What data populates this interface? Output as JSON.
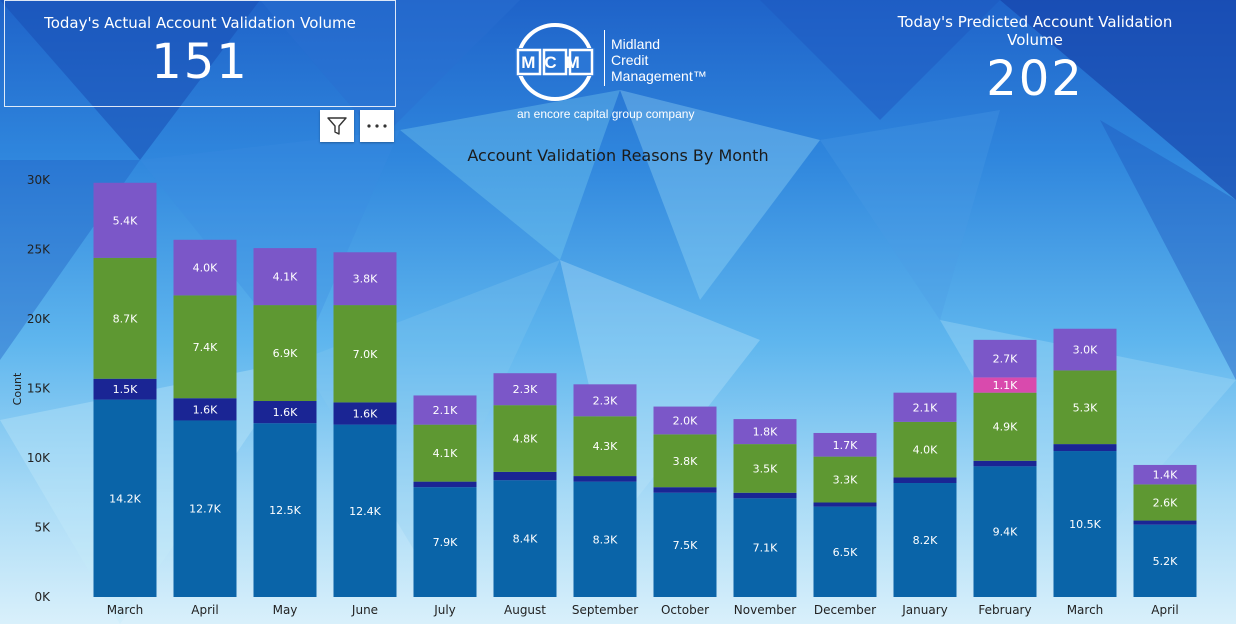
{
  "kpi_actual": {
    "title": "Today's Actual Account Validation Volume",
    "value": "151"
  },
  "kpi_predicted": {
    "title": "Today's Predicted Account Validation Volume",
    "value": "202"
  },
  "logo": {
    "badge": "MCM",
    "line1": "Midland",
    "line2": "Credit",
    "line3": "Management™",
    "tagline": "an encore capital group company"
  },
  "icons": {
    "filter": "filter-icon",
    "more": "more-options-icon"
  },
  "colors": {
    "s1": "#0a64a8",
    "s2": "#1a2594",
    "s3": "#5e9832",
    "s4": "#d94aad",
    "s5": "#7b57c8"
  },
  "chart_data": {
    "type": "bar",
    "stacked": true,
    "title": "Account Validation Reasons By Month",
    "xlabel": "",
    "ylabel": "Count",
    "ylim": [
      0,
      30000
    ],
    "yticks": [
      "0K",
      "5K",
      "10K",
      "15K",
      "20K",
      "25K",
      "30K"
    ],
    "categories": [
      "March",
      "April",
      "May",
      "June",
      "July",
      "August",
      "September",
      "October",
      "November",
      "December",
      "January",
      "February",
      "March",
      "April"
    ],
    "series": [
      {
        "values": [
          14200,
          12700,
          12500,
          12400,
          7900,
          8400,
          8300,
          7500,
          7100,
          6500,
          8200,
          9400,
          10500,
          5200
        ],
        "labels": [
          "14.2K",
          "12.7K",
          "12.5K",
          "12.4K",
          "7.9K",
          "8.4K",
          "8.3K",
          "7.5K",
          "7.1K",
          "6.5K",
          "8.2K",
          "9.4K",
          "10.5K",
          "5.2K"
        ]
      },
      {
        "values": [
          1500,
          1600,
          1600,
          1600,
          400,
          600,
          400,
          400,
          400,
          300,
          400,
          400,
          500,
          300
        ],
        "labels": [
          "1.5K",
          "1.6K",
          "1.6K",
          "1.6K",
          "",
          "",
          "",
          "",
          "",
          "",
          "",
          "",
          "",
          ""
        ]
      },
      {
        "values": [
          8700,
          7400,
          6900,
          7000,
          4100,
          4800,
          4300,
          3800,
          3500,
          3300,
          4000,
          4900,
          5300,
          2600
        ],
        "labels": [
          "8.7K",
          "7.4K",
          "6.9K",
          "7.0K",
          "4.1K",
          "4.8K",
          "4.3K",
          "3.8K",
          "3.5K",
          "3.3K",
          "4.0K",
          "4.9K",
          "5.3K",
          "2.6K"
        ]
      },
      {
        "values": [
          0,
          0,
          0,
          0,
          0,
          0,
          0,
          0,
          0,
          0,
          0,
          1100,
          0,
          0
        ],
        "labels": [
          "",
          "",
          "",
          "",
          "",
          "",
          "",
          "",
          "",
          "",
          "",
          "1.1K",
          "",
          ""
        ]
      },
      {
        "values": [
          5400,
          4000,
          4100,
          3800,
          2100,
          2300,
          2300,
          2000,
          1800,
          1700,
          2100,
          2700,
          3000,
          1400
        ],
        "labels": [
          "5.4K",
          "4.0K",
          "4.1K",
          "3.8K",
          "2.1K",
          "2.3K",
          "2.3K",
          "2.0K",
          "1.8K",
          "1.7K",
          "2.1K",
          "2.7K",
          "3.0K",
          "1.4K"
        ]
      }
    ]
  }
}
